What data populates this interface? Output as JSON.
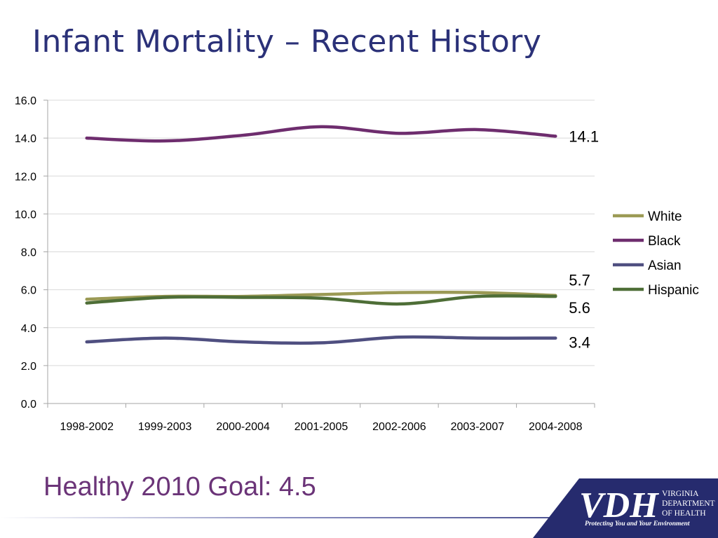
{
  "slide": {
    "title": "Infant Mortality – Recent History",
    "goal": "Healthy 2010 Goal: 4.5"
  },
  "logo": {
    "letters": "VDH",
    "line1": "VIRGINIA",
    "line2": "DEPARTMENT",
    "line3": "OF HEALTH",
    "tagline": "Protecting You and Your Environment"
  },
  "colors": {
    "title": "#2b3178",
    "goal": "#6b3478",
    "logo_bg": "#262b6e"
  },
  "chart_data": {
    "type": "line",
    "categories": [
      "1998-2002",
      "1999-2003",
      "2000-2004",
      "2001-2005",
      "2002-2006",
      "2003-2007",
      "2004-2008"
    ],
    "ylim": [
      0,
      16
    ],
    "yticks": [
      "0.0",
      "2.0",
      "4.0",
      "6.0",
      "8.0",
      "10.0",
      "12.0",
      "14.0",
      "16.0"
    ],
    "grid": true,
    "legend_position": "right",
    "series": [
      {
        "name": "White",
        "color": "#9b9a55",
        "values": [
          5.5,
          5.65,
          5.65,
          5.75,
          5.85,
          5.85,
          5.7
        ],
        "end_label": "5.7"
      },
      {
        "name": "Black",
        "color": "#6e2d6e",
        "values": [
          14.0,
          13.85,
          14.15,
          14.6,
          14.25,
          14.45,
          14.1
        ],
        "end_label": "14.1"
      },
      {
        "name": "Asian",
        "color": "#4f4f80",
        "values": [
          3.25,
          3.45,
          3.25,
          3.2,
          3.5,
          3.45,
          3.45
        ],
        "end_label": "3.4"
      },
      {
        "name": "Hispanic",
        "color": "#4e6e37",
        "values": [
          5.3,
          5.6,
          5.6,
          5.55,
          5.25,
          5.65,
          5.65
        ],
        "end_label": "5.6"
      }
    ]
  }
}
